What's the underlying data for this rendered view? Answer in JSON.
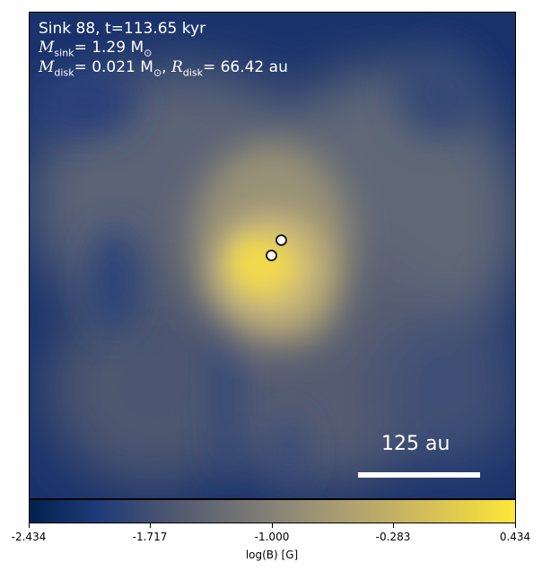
{
  "annotation": {
    "line1": "Sink 88, t=113.65 kyr",
    "msink_symbol": "M",
    "msink_sub": "sink",
    "msink_value": "= 1.29 M",
    "msink_unit_sub": "⊙",
    "mdisk_symbol": "M",
    "mdisk_sub": "disk",
    "mdisk_value": "= 0.021 M",
    "mdisk_unit_sub": "⊙",
    "mdisk_sep": ", ",
    "rdisk_symbol": "R",
    "rdisk_sub": "disk",
    "rdisk_value": "= 66.42 au"
  },
  "scalebar": {
    "label": "125 au"
  },
  "colorbar": {
    "label": "log(B) [G]",
    "ticks": [
      "-2.434",
      "-1.717",
      "-1.000",
      "-0.283",
      "0.434"
    ],
    "colormap": "cividis",
    "min_color": "#00224e",
    "max_color": "#fde737"
  },
  "sinks": {
    "count": 2,
    "marker_color": "#ffffff",
    "edge_color": "#222222"
  }
}
